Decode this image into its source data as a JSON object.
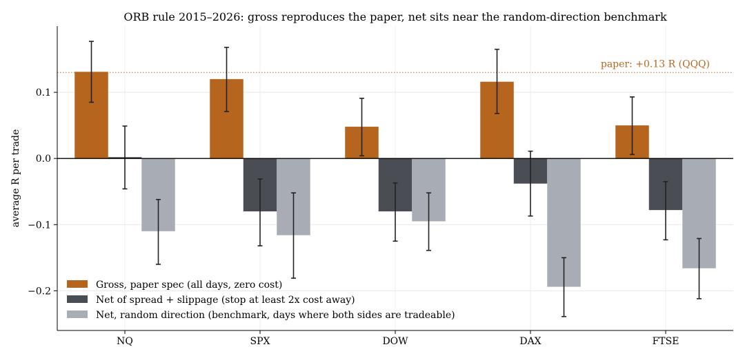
{
  "chart_data": {
    "type": "bar",
    "title": "ORB rule 2015–2026: gross reproduces the paper, net sits near the random-direction benchmark",
    "xlabel": "",
    "ylabel": "average R per trade",
    "ylim": [
      -0.26,
      0.2
    ],
    "yticks": [
      0.1,
      0.0,
      -0.1,
      -0.2
    ],
    "ytick_labels": [
      "0.1",
      "0.0",
      "−0.1",
      "−0.2"
    ],
    "grid": true,
    "legend_placement": "lower-left",
    "categories": [
      "NQ",
      "SPX",
      "DOW",
      "DAX",
      "FTSE"
    ],
    "series": [
      {
        "name": "Gross, paper spec (all days, zero cost)",
        "color": "#b5651d",
        "values": [
          0.131,
          0.12,
          0.048,
          0.116,
          0.05
        ],
        "err_low": [
          0.085,
          0.071,
          0.004,
          0.068,
          0.006
        ],
        "err_high": [
          0.177,
          0.168,
          0.091,
          0.165,
          0.093
        ]
      },
      {
        "name": "Net of spread + slippage (stop at least 2x cost away)",
        "color": "#4a4d54",
        "values": [
          0.002,
          -0.08,
          -0.08,
          -0.038,
          -0.078
        ],
        "err_low": [
          -0.046,
          -0.132,
          -0.125,
          -0.087,
          -0.123
        ],
        "err_high": [
          0.049,
          -0.031,
          -0.037,
          0.011,
          -0.035
        ]
      },
      {
        "name": "Net, random direction (benchmark, days where both sides are tradeable)",
        "color": "#a8adb5",
        "values": [
          -0.11,
          -0.116,
          -0.095,
          -0.194,
          -0.166
        ],
        "err_low": [
          -0.16,
          -0.181,
          -0.139,
          -0.239,
          -0.212
        ],
        "err_high": [
          -0.062,
          -0.052,
          -0.052,
          -0.15,
          -0.121
        ]
      }
    ],
    "reference_line": {
      "value": 0.13,
      "label": "paper: +0.13 R (QQQ)",
      "color": "#b5651d"
    }
  }
}
